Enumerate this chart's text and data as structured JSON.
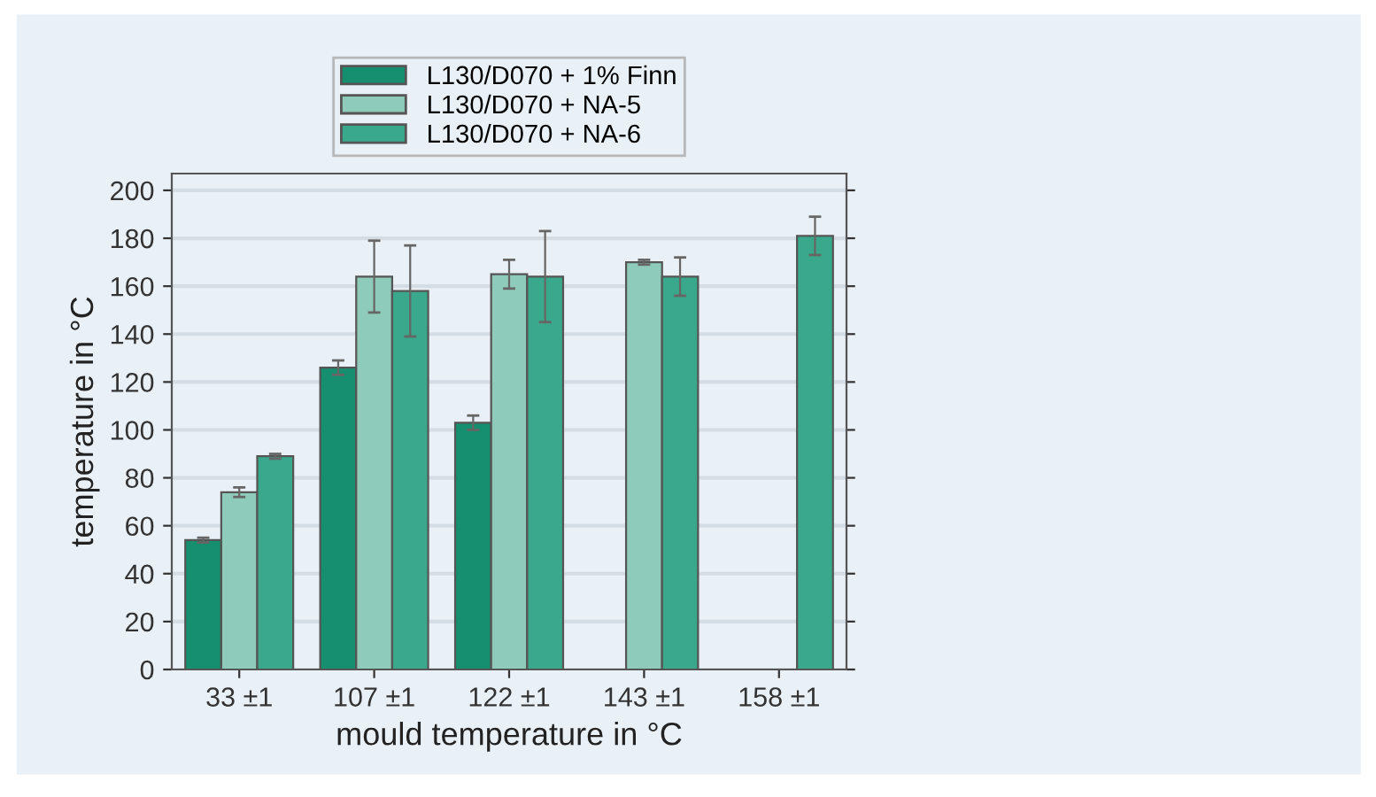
{
  "chart_data": {
    "type": "bar",
    "xlabel": "mould temperature in °C",
    "ylabel": "temperature in °C",
    "categories": [
      "33 ±1",
      "107 ±1",
      "122 ±1",
      "143 ±1",
      "158 ±1"
    ],
    "series": [
      {
        "name": "L130/D070 + 1% Finn",
        "color": "#168f6f",
        "values": [
          54,
          126,
          103,
          null,
          null
        ],
        "errors": [
          1,
          3,
          3,
          null,
          null
        ]
      },
      {
        "name": "L130/D070 + NA-5",
        "color": "#8fcbbb",
        "values": [
          74,
          164,
          165,
          170,
          null
        ],
        "errors": [
          2,
          15,
          6,
          1,
          null
        ]
      },
      {
        "name": "L130/D070 + NA-6",
        "color": "#3aa88a",
        "values": [
          89,
          158,
          164,
          164,
          181
        ],
        "errors": [
          1,
          19,
          19,
          8,
          8
        ]
      }
    ],
    "ylim": [
      0,
      207
    ],
    "yticks": [
      0,
      20,
      40,
      60,
      80,
      100,
      120,
      140,
      160,
      180,
      200
    ],
    "grid": "y",
    "legend": "top"
  }
}
